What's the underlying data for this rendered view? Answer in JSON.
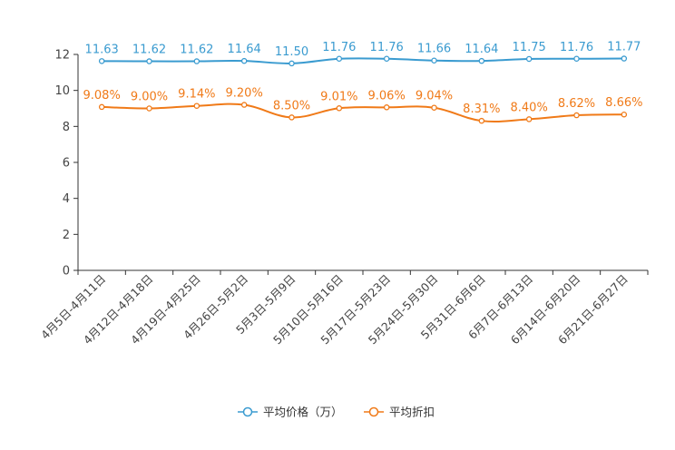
{
  "chart_data": {
    "type": "line",
    "categories": [
      "4月5日-4月11日",
      "4月12日-4月18日",
      "4月19日-4月25日",
      "4月26日-5月2日",
      "5月3日-5月9日",
      "5月10日-5月16日",
      "5月17日-5月23日",
      "5月24日-5月30日",
      "5月31日-6月6日",
      "6月7日-6月13日",
      "6月14日-6月20日",
      "6月21日-6月27日"
    ],
    "series": [
      {
        "name": "平均价格（万）",
        "color": "#3a9bd0",
        "values": [
          11.63,
          11.62,
          11.62,
          11.64,
          11.5,
          11.76,
          11.76,
          11.66,
          11.64,
          11.75,
          11.76,
          11.77
        ],
        "labels": [
          "11.63",
          "11.62",
          "11.62",
          "11.64",
          "11.50",
          "11.76",
          "11.76",
          "11.66",
          "11.64",
          "11.75",
          "11.76",
          "11.77"
        ]
      },
      {
        "name": "平均折扣",
        "color": "#f07a18",
        "values": [
          9.08,
          9.0,
          9.14,
          9.2,
          8.5,
          9.01,
          9.06,
          9.04,
          8.31,
          8.4,
          8.62,
          8.66
        ],
        "labels": [
          "9.08%",
          "9.00%",
          "9.14%",
          "9.20%",
          "8.50%",
          "9.01%",
          "9.06%",
          "9.04%",
          "8.31%",
          "8.40%",
          "8.62%",
          "8.66%"
        ]
      }
    ],
    "yticks": [
      "0",
      "2",
      "4",
      "6",
      "8",
      "10",
      "12"
    ],
    "ylim": [
      0,
      12
    ],
    "grid": false,
    "legend_position": "bottom-center"
  }
}
